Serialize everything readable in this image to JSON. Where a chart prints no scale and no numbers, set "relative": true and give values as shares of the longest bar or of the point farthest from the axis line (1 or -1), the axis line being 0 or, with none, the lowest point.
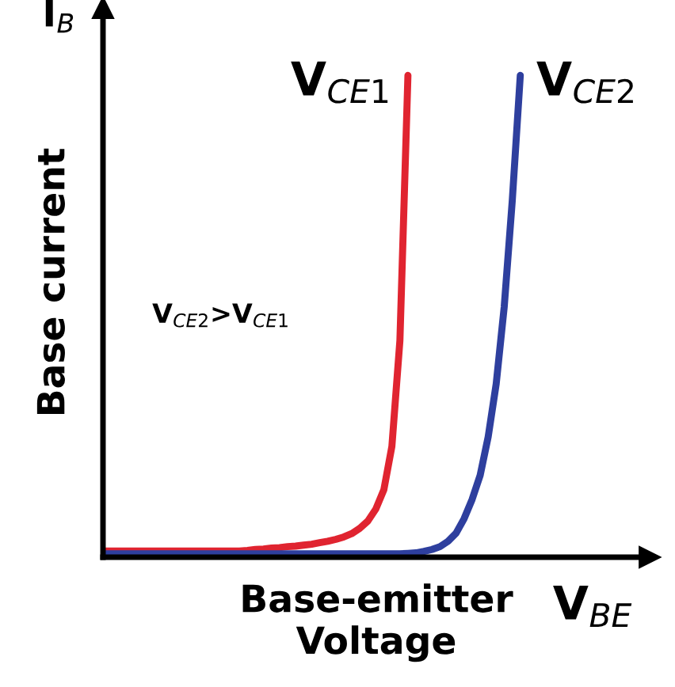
{
  "chart_data": {
    "type": "line",
    "relative": true,
    "xlabel": "Base-emitter\nVoltage",
    "ylabel": "Base current",
    "annotations": [
      "I$_{B}$",
      "V$_{BE}$",
      "V$_{CE2}$>V$_{CE1}$"
    ],
    "categories": [
      null,
      null,
      null,
      null,
      null,
      null,
      null,
      null,
      null,
      null,
      null,
      null,
      null,
      null,
      null,
      null,
      null,
      null,
      null,
      null,
      null,
      null,
      null,
      null,
      null,
      null,
      null,
      null,
      null,
      null,
      null,
      null,
      null,
      null,
      null,
      null,
      null,
      null,
      null,
      null,
      null,
      null,
      null,
      null,
      null,
      null,
      null,
      null,
      null,
      null,
      null,
      null,
      null
    ],
    "series": [
      {
        "name": "V$_{CE1}$",
        "color": "#e02430",
        "values": [
          0.013,
          0.013,
          0.013,
          0.013,
          0.013,
          0.013,
          0.013,
          0.013,
          0.013,
          0.013,
          0.013,
          0.013,
          0.013,
          0.013,
          0.013,
          0.013,
          0.013,
          0.013,
          0.014,
          0.016,
          0.017,
          0.019,
          0.02,
          0.022,
          0.023,
          0.025,
          0.027,
          0.03,
          0.033,
          0.037,
          0.042,
          0.049,
          0.06,
          0.075,
          0.1,
          0.14,
          0.23,
          0.45,
          1,
          null,
          null,
          null,
          null,
          null,
          null,
          null,
          null,
          null,
          null,
          null,
          null,
          null,
          null
        ]
      },
      {
        "name": "V$_{CE2}$",
        "color": "#2e3f9e",
        "values": [
          0.007,
          0.007,
          0.007,
          0.007,
          0.007,
          0.007,
          0.007,
          0.007,
          0.007,
          0.007,
          0.007,
          0.007,
          0.007,
          0.007,
          0.007,
          0.007,
          0.007,
          0.007,
          0.007,
          0.007,
          0.007,
          0.007,
          0.007,
          0.007,
          0.007,
          0.007,
          0.007,
          0.007,
          0.007,
          0.007,
          0.007,
          0.007,
          0.007,
          0.007,
          0.007,
          0.007,
          0.007,
          0.007,
          0.008,
          0.009,
          0.012,
          0.016,
          0.022,
          0.033,
          0.05,
          0.08,
          0.12,
          0.17,
          0.25,
          0.36,
          0.52,
          0.74,
          1
        ]
      }
    ],
    "legend": false,
    "marker": "none",
    "line_style": "solid"
  }
}
